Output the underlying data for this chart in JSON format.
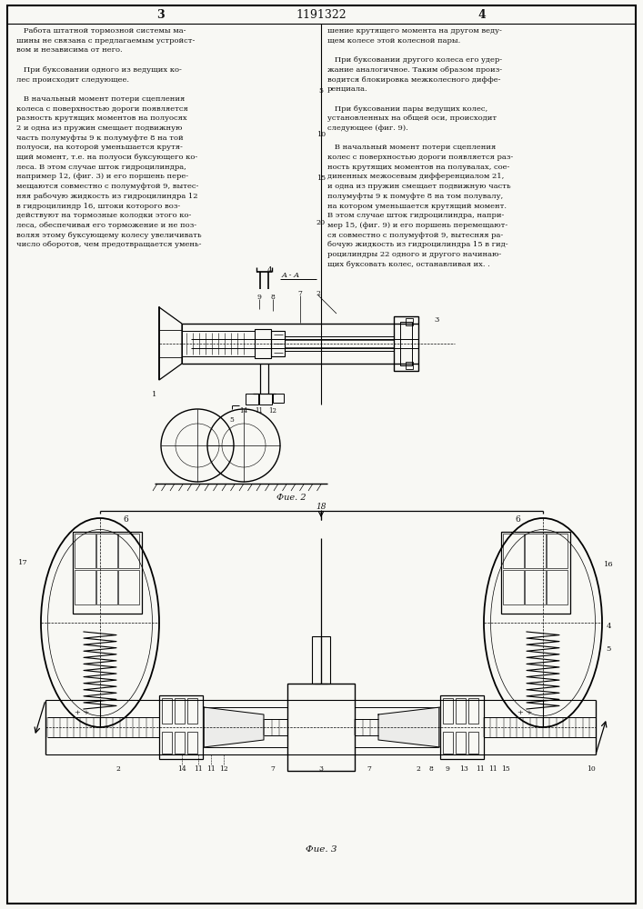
{
  "page_width": 7.07,
  "page_height": 10.0,
  "bg_color": "#f8f8f4",
  "text_color": "#111111",
  "patent_number": "1191322",
  "page_left": "3",
  "page_right": "4",
  "fig2_caption": "Фие. 2",
  "fig3_caption": "Фие. 3",
  "label_18": "18",
  "label_AA": "A - A",
  "left_text": "   Работа штатной тормозной системы ма-\nшины не связана с предлагаемым устройст-\nвом и независима от него.\n\n   При буксовании одного из ведущих ко-\nлес происходит следующее.\n\n   В начальный момент потери сцепления\nколеса с поверхностью дороги появляется\nразность крутящих моментов на полуосях\n2 и одна из пружин смещает подвижную\nчасть полумуфты 9 к полумуфте 8 на той\nполуоси, на которой уменьшается крутя-\nщий момент, т.е. на полуоси буксующего ко-\nлеса. В этом случае шток гидроцилиндра,\nнапример 12, (фиг. 3) и его поршень пере-\nмещаются совместно с полумуфтой 9, вытес-\nняя рабочую жидкость из гидроцилиндра 12\nв гидроцилиндр 16, штоки которого воз-\nдействуют на тормозные колодки этого ко-\nлеса, обеспечивая его торможение и не поз-\nволяя этому буксующему колесу увеличивать\nчисло оборотов, чем предотвращается умень-",
  "right_text": "шение крутящего момента на другом веду-\nщем колесе этой колесной пары.\n\n   При буксовании другого колеса его удер-\nжание аналогичное. Таким образом произ-\nводится блокировка межколесного диффе-\nренциала.\n\n   При буксовании пары ведущих колес,\nустановленных на общей оси, происходит\nследующее (фиг. 9).\n\n   В начальный момент потери сцепления\nколес с поверхностью дороги появляется раз-\nность крутящих моментов на полувалах, сое-\nдиненных межосевым дифференциалом 21,\nи одна из пружин смещает подвижную часть\nполумуфты 9 к помуфте 8 на том полувалу,\nна котором уменьшается крутящий момент.\nВ этом случае шток гидроцилиндра, напри-\nмер 15, (фиг. 9) и его поршень перемещают-\nся совместно с полумуфтой 9, вытесняя ра-\nбочую жидкость из гидроцилиндра 15 в гид-\nроцилиндры 22 одного и другого начинаю-\nщих буксовать колес, останавливая их. ."
}
